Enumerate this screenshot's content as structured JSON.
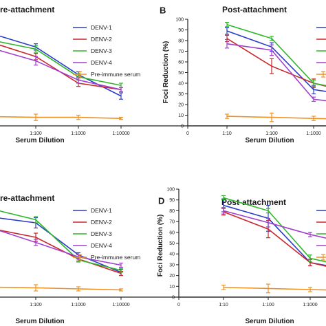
{
  "colors": {
    "DENV-1": "#2b3cc9",
    "DENV-2": "#c9272b",
    "DENV-3": "#2fb72a",
    "DENV-4": "#a13fcf",
    "Pre-immune serum": "#f0901e"
  },
  "chart_data": [
    {
      "id": "A",
      "type": "line",
      "title": "Pre-attachment",
      "xlabel": "Serum Dilution",
      "x_ticks": [
        "1:100",
        "1:1000",
        "1:10000"
      ],
      "series": [
        {
          "name": "DENV-1",
          "values": [
            [
              1,
              92
            ],
            [
              10,
              74
            ],
            [
              100,
              48
            ],
            [
              1000,
              28
            ]
          ],
          "errors": [
            0,
            3,
            3,
            3
          ]
        },
        {
          "name": "DENV-2",
          "values": [
            [
              1,
              84
            ],
            [
              10,
              65
            ],
            [
              100,
              40
            ],
            [
              1000,
              34
            ]
          ],
          "errors": [
            0,
            3,
            3,
            2
          ]
        },
        {
          "name": "DENV-3",
          "values": [
            [
              1,
              84
            ],
            [
              10,
              72
            ],
            [
              100,
              46
            ],
            [
              1000,
              38
            ]
          ],
          "errors": [
            0,
            3,
            3,
            2
          ]
        },
        {
          "name": "DENV-4",
          "values": [
            [
              1,
              78
            ],
            [
              10,
              61
            ],
            [
              100,
              43
            ],
            [
              1000,
              34
            ]
          ],
          "errors": [
            0,
            4,
            3,
            2
          ]
        },
        {
          "name": "Pre-immune serum",
          "values": [
            [
              1,
              9
            ],
            [
              10,
              8
            ],
            [
              100,
              8
            ],
            [
              1000,
              7
            ]
          ],
          "errors": [
            0,
            3,
            2,
            1
          ]
        }
      ],
      "legend": [
        "DENV-1",
        "DENV-2",
        "DENV-3",
        "DENV-4",
        "Pre-immune serum"
      ],
      "legend_position": "top-right"
    },
    {
      "id": "B",
      "type": "line",
      "title": "Post-attachment",
      "panel_label": "B",
      "xlabel": "Serum Dilution",
      "ylabel": "Foci Reduction (%)",
      "ylim": [
        0,
        100
      ],
      "y_ticks": [
        0,
        10,
        20,
        30,
        40,
        50,
        60,
        70,
        80,
        90,
        100
      ],
      "x_ticks": [
        "0",
        "1:10",
        "1:100",
        "1:1000"
      ],
      "series": [
        {
          "name": "DENV-1",
          "values": [
            [
              10,
              89
            ],
            [
              100,
              74
            ],
            [
              1000,
              34
            ],
            [
              10000,
              28
            ]
          ],
          "errors": [
            3,
            4,
            4,
            2
          ]
        },
        {
          "name": "DENV-2",
          "values": [
            [
              10,
              82
            ],
            [
              100,
              56
            ],
            [
              1000,
              40
            ],
            [
              10000,
              30
            ]
          ],
          "errors": [
            3,
            7,
            4,
            2
          ]
        },
        {
          "name": "DENV-3",
          "values": [
            [
              10,
              95
            ],
            [
              100,
              82
            ],
            [
              1000,
              40
            ],
            [
              10000,
              32
            ]
          ],
          "errors": [
            2,
            2,
            3,
            2
          ]
        },
        {
          "name": "DENV-4",
          "values": [
            [
              10,
              77
            ],
            [
              100,
              71
            ],
            [
              1000,
              25
            ],
            [
              10000,
              20
            ]
          ],
          "errors": [
            4,
            5,
            2,
            2
          ]
        },
        {
          "name": "Pre-immune serum",
          "values": [
            [
              10,
              9
            ],
            [
              100,
              8
            ],
            [
              1000,
              7
            ],
            [
              10000,
              6
            ]
          ],
          "errors": [
            2,
            4,
            2,
            1
          ]
        }
      ],
      "legend_position": "top-right"
    },
    {
      "id": "C",
      "type": "line",
      "title": "Pre-attachment",
      "xlabel": "Serum Dilution",
      "x_ticks": [
        "1:100",
        "1:1000",
        "1:10000"
      ],
      "series": [
        {
          "name": "DENV-1",
          "values": [
            [
              1,
              80
            ],
            [
              10,
              72
            ],
            [
              100,
              41
            ],
            [
              1000,
              24
            ]
          ],
          "errors": [
            0,
            5,
            2,
            3
          ]
        },
        {
          "name": "DENV-2",
          "values": [
            [
              1,
              70
            ],
            [
              10,
              58
            ],
            [
              100,
              37
            ],
            [
              1000,
              23
            ]
          ],
          "errors": [
            0,
            4,
            2,
            2
          ]
        },
        {
          "name": "DENV-3",
          "values": [
            [
              1,
              90
            ],
            [
              10,
              75
            ],
            [
              100,
              36
            ],
            [
              1000,
              26
            ]
          ],
          "errors": [
            0,
            3,
            2,
            2
          ]
        },
        {
          "name": "DENV-4",
          "values": [
            [
              1,
              73
            ],
            [
              10,
              53
            ],
            [
              100,
              39
            ],
            [
              1000,
              31
            ]
          ],
          "errors": [
            0,
            3,
            2,
            2
          ]
        },
        {
          "name": "Pre-immune serum",
          "values": [
            [
              1,
              10
            ],
            [
              10,
              9
            ],
            [
              100,
              8
            ],
            [
              1000,
              7
            ]
          ],
          "errors": [
            0,
            3,
            2,
            1
          ]
        }
      ],
      "legend": [
        "DENV-1",
        "DENV-2",
        "DENV-3",
        "DENV-4",
        "Pre-immune serum"
      ],
      "legend_position": "top-right"
    },
    {
      "id": "D",
      "type": "line",
      "title": "Post-attachment",
      "panel_label": "D",
      "xlabel": "Serum Dilution",
      "ylabel": "Foci Reduction (%)",
      "ylim": [
        0,
        100
      ],
      "y_ticks": [
        0,
        10,
        20,
        30,
        40,
        50,
        60,
        70,
        80,
        90,
        100
      ],
      "x_ticks": [
        "0",
        "1:10",
        "1:100",
        "1:1000"
      ],
      "series": [
        {
          "name": "DENV-1",
          "values": [
            [
              10,
              85
            ],
            [
              100,
              73
            ],
            [
              1000,
              32
            ],
            [
              10000,
              24
            ]
          ],
          "errors": [
            6,
            12,
            3,
            2
          ]
        },
        {
          "name": "DENV-2",
          "values": [
            [
              10,
              79
            ],
            [
              100,
              63
            ],
            [
              1000,
              32
            ],
            [
              10000,
              22
            ]
          ],
          "errors": [
            3,
            8,
            3,
            2
          ]
        },
        {
          "name": "DENV-3",
          "values": [
            [
              10,
              92
            ],
            [
              100,
              80
            ],
            [
              1000,
              36
            ],
            [
              10000,
              26
            ]
          ],
          "errors": [
            2,
            2,
            3,
            2
          ]
        },
        {
          "name": "DENV-4",
          "values": [
            [
              10,
              80
            ],
            [
              100,
              69
            ],
            [
              1000,
              58
            ],
            [
              10000,
              48
            ]
          ],
          "errors": [
            3,
            4,
            2,
            2
          ]
        },
        {
          "name": "Pre-immune serum",
          "values": [
            [
              10,
              9
            ],
            [
              100,
              8
            ],
            [
              1000,
              7
            ],
            [
              10000,
              6
            ]
          ],
          "errors": [
            2,
            4,
            2,
            1
          ]
        }
      ],
      "legend_position": "top-right"
    }
  ]
}
